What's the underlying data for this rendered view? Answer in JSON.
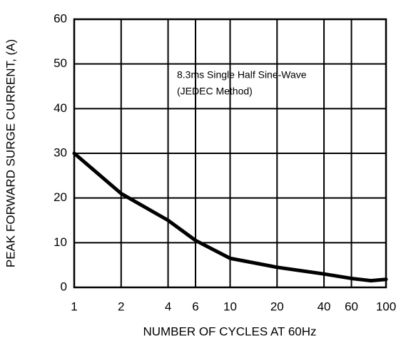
{
  "chart_data": {
    "type": "line",
    "x_label": "NUMBER OF CYCLES AT 60Hz",
    "y_label": "PEAK FORWARD SURGE CURRENT, (A)",
    "annotation": [
      "8.3ms Single Half Sine-Wave",
      "(JEDEC Method)"
    ],
    "x": [
      1,
      2,
      4,
      6,
      10,
      20,
      40,
      60,
      80,
      100
    ],
    "series": [
      {
        "color": "#000000",
        "values": [
          30,
          21,
          15,
          10.5,
          6.5,
          4.5,
          3,
          2,
          1.5,
          1.8
        ]
      }
    ],
    "xlim": [
      1,
      100
    ],
    "xticks": [
      1,
      2,
      4,
      6,
      10,
      20,
      40,
      60,
      100
    ],
    "xscale": "log",
    "ylim": [
      0,
      60
    ],
    "yticks": [
      0,
      10,
      20,
      30,
      40,
      50,
      60
    ],
    "grid": true
  }
}
